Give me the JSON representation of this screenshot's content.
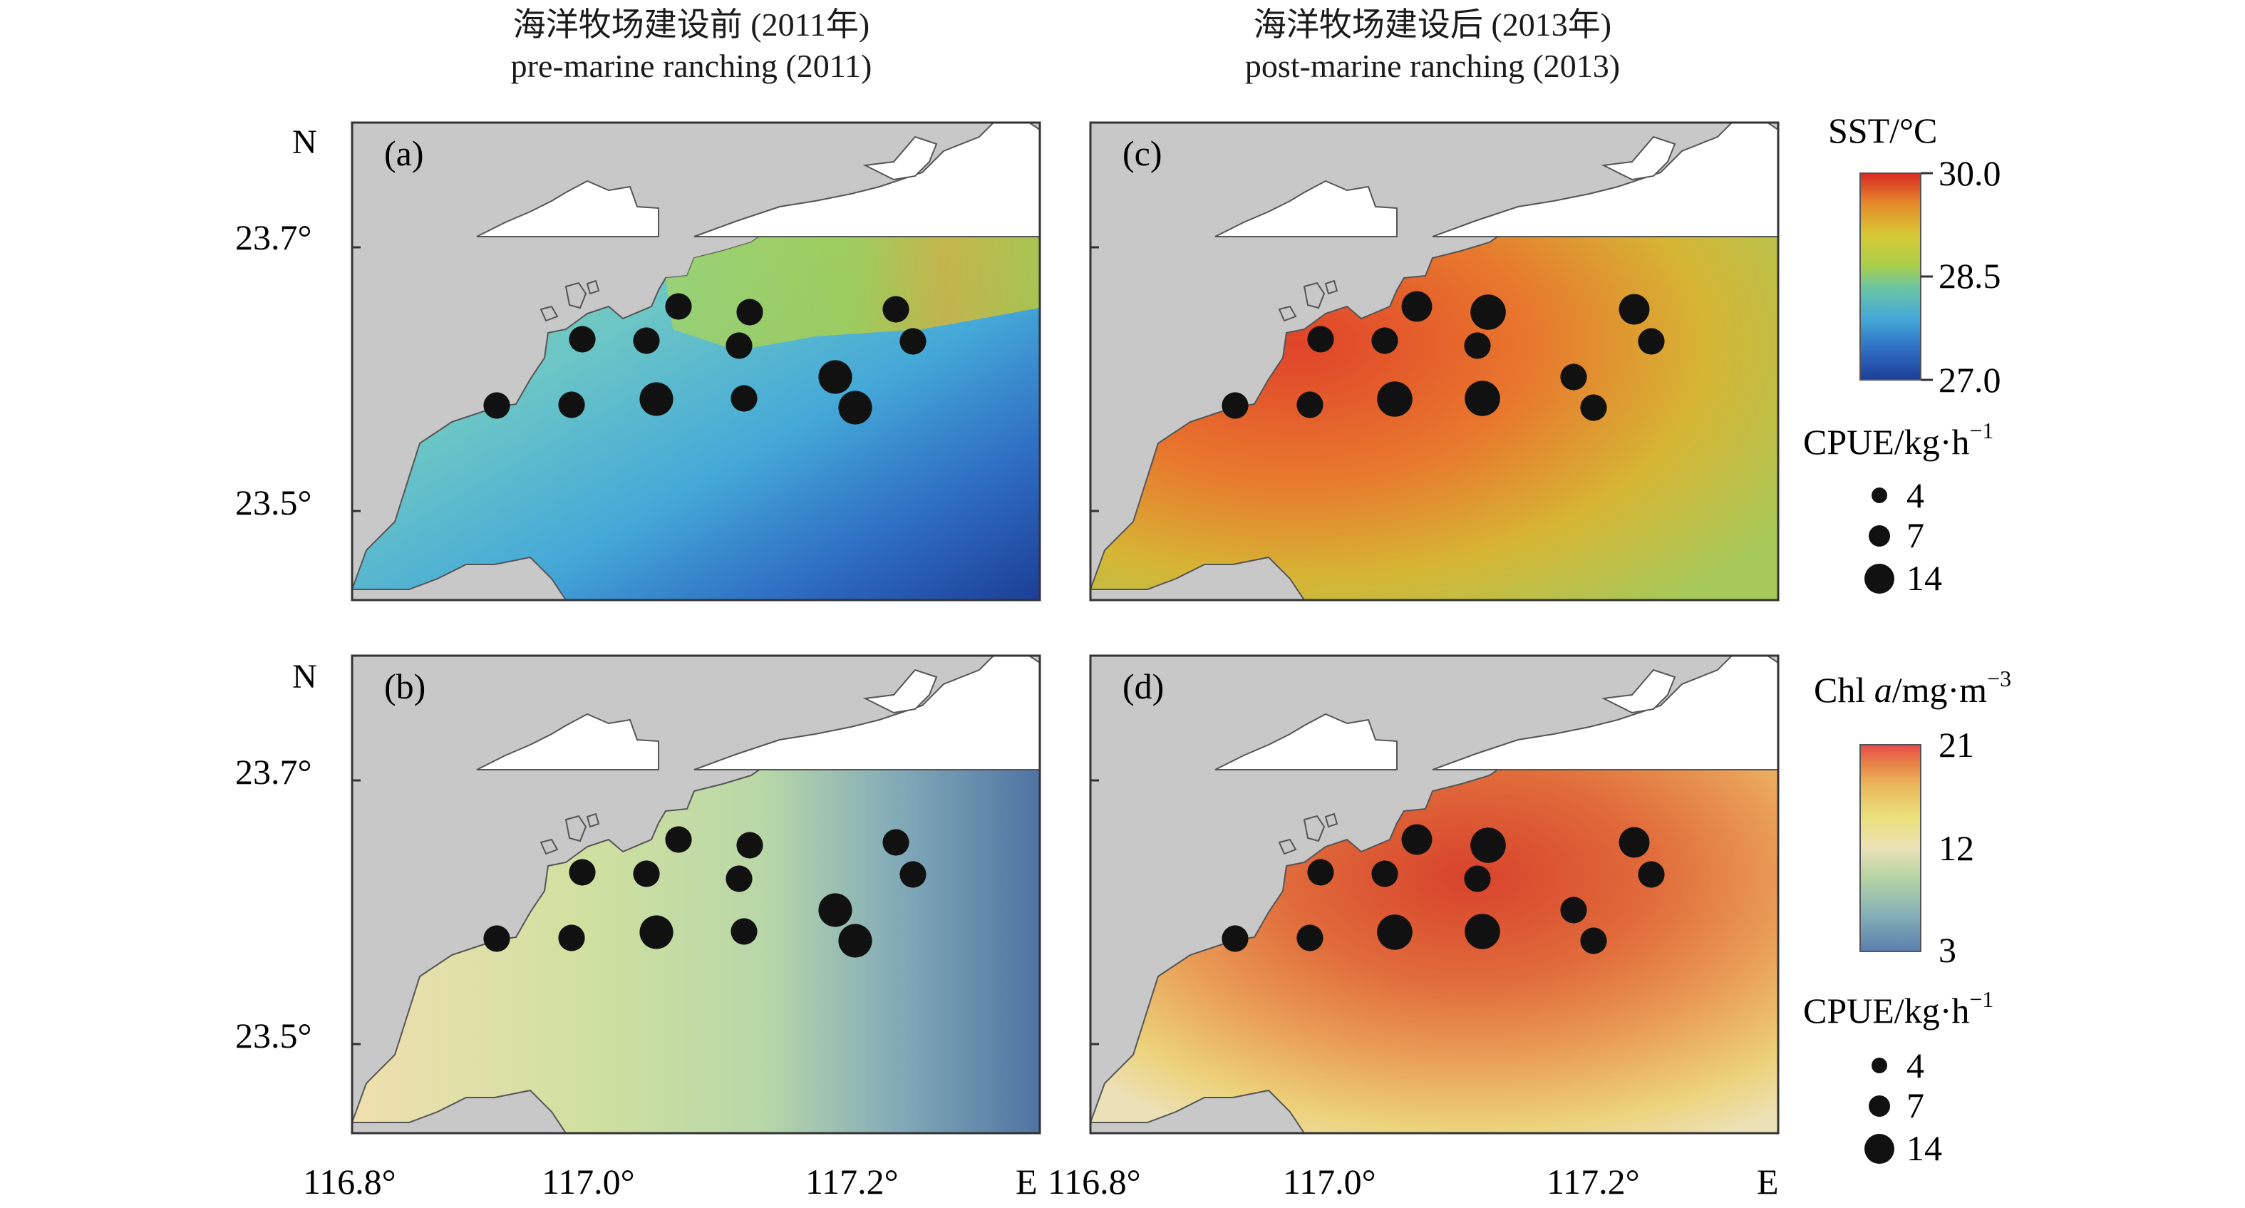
{
  "headers": [
    {
      "cn": "海洋牧场建设前 (2011年)",
      "en": "pre-marine ranching (2011)"
    },
    {
      "cn": "海洋牧场建设后 (2013年)",
      "en": "post-marine ranching (2013)"
    }
  ],
  "panels": [
    {
      "id": "a",
      "label": "(a)",
      "layer": "SST",
      "year": 2011,
      "cpue": [
        5.5,
        5.5,
        5.5,
        12,
        5.5,
        5.5,
        5.5,
        5.5,
        5.5,
        12,
        12,
        5.5,
        5.5
      ]
    },
    {
      "id": "c",
      "label": "(c)",
      "layer": "SST",
      "year": 2013,
      "cpue": [
        5.5,
        5.5,
        5.5,
        14,
        5.5,
        9,
        5.5,
        14,
        14,
        5.5,
        5.5,
        9,
        5.5
      ]
    },
    {
      "id": "b",
      "label": "(b)",
      "layer": "Chl a",
      "year": 2011,
      "cpue": [
        5.5,
        5.5,
        5.5,
        12,
        5.5,
        5.5,
        5.5,
        5.5,
        5.5,
        12,
        12,
        5.5,
        5.5
      ]
    },
    {
      "id": "d",
      "label": "(d)",
      "layer": "Chl a",
      "year": 2013,
      "cpue": [
        5.5,
        5.5,
        5.5,
        14,
        5.5,
        9,
        5.5,
        14,
        14,
        5.5,
        5.5,
        9,
        5.5
      ]
    }
  ],
  "axes": {
    "north_label": "N",
    "east_label": "E",
    "lat_ticks": [
      "23.7°",
      "23.5°"
    ],
    "lon_ticks": [
      "116.8°",
      "117.0°",
      "117.2°"
    ]
  },
  "legend_sst": {
    "title": "SST/°C",
    "ticks": [
      "30.0",
      "28.5",
      "27.0"
    ],
    "colors": [
      "#1c3e96",
      "#2f6fc4",
      "#45a9d8",
      "#6cc6a0",
      "#a9cf4b",
      "#d7c935",
      "#e58b2b",
      "#d92a24"
    ]
  },
  "legend_chl": {
    "title_prefix": "Chl ",
    "title_italic": "a",
    "title_suffix": "/mg·m",
    "title_sup": "−3",
    "ticks": [
      "21",
      "12",
      "3"
    ],
    "colors": [
      "#5a7fad",
      "#86b0b8",
      "#b2d3a3",
      "#ece1b6",
      "#e9e07a",
      "#eab95c",
      "#e88746",
      "#e84a4a"
    ]
  },
  "legend_cpue": {
    "title": "CPUE/kg·h",
    "title_sup": "−1",
    "sizes": [
      "4",
      "7",
      "14"
    ]
  },
  "colors": {
    "land": "#c8c8c8",
    "dot": "#111111"
  }
}
